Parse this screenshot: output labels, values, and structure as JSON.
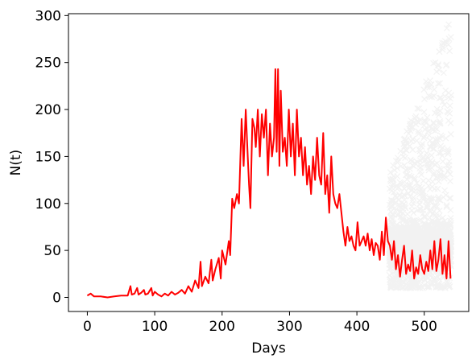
{
  "chart_data": {
    "type": "line",
    "title": "",
    "xlabel": "Days",
    "ylabel": "N(t)",
    "xlim": [
      -28,
      566
    ],
    "ylim": [
      -15,
      302
    ],
    "xticks": [
      0,
      100,
      200,
      300,
      400,
      500
    ],
    "yticks": [
      0,
      50,
      100,
      150,
      200,
      250,
      300
    ],
    "grid": false,
    "legend": "none",
    "series": [
      {
        "kind": "line",
        "color": "#ff0000",
        "x": [
          0,
          5,
          10,
          20,
          30,
          40,
          50,
          60,
          64,
          66,
          70,
          74,
          76,
          80,
          84,
          86,
          90,
          95,
          97,
          100,
          105,
          110,
          115,
          120,
          125,
          130,
          135,
          140,
          145,
          150,
          155,
          160,
          165,
          168,
          170,
          175,
          180,
          184,
          186,
          190,
          195,
          198,
          200,
          205,
          210,
          212,
          215,
          218,
          222,
          225,
          229,
          232,
          235,
          238,
          240,
          242,
          245,
          248,
          250,
          253,
          256,
          259,
          262,
          265,
          268,
          271,
          274,
          277,
          279,
          281,
          283,
          285,
          287,
          290,
          293,
          296,
          299,
          302,
          305,
          308,
          311,
          314,
          317,
          320,
          323,
          326,
          329,
          332,
          335,
          338,
          341,
          344,
          347,
          350,
          353,
          356,
          359,
          362,
          365,
          368,
          371,
          374,
          377,
          380,
          383,
          386,
          389,
          392,
          395,
          398,
          401,
          404,
          407,
          410,
          413,
          416,
          419,
          422,
          425,
          428,
          431,
          434,
          437,
          440,
          443,
          446,
          449,
          452,
          455,
          458,
          461,
          464,
          467,
          470,
          473,
          476,
          479,
          482,
          485,
          488,
          491,
          494,
          497,
          500,
          503,
          506,
          509,
          512,
          515,
          518,
          521,
          524,
          527,
          530,
          533,
          536,
          539
        ],
        "y": [
          2,
          4,
          1,
          1,
          0,
          1,
          2,
          2,
          12,
          3,
          4,
          10,
          3,
          5,
          8,
          3,
          4,
          10,
          2,
          6,
          3,
          1,
          4,
          2,
          6,
          3,
          5,
          8,
          4,
          12,
          6,
          18,
          10,
          38,
          12,
          22,
          15,
          40,
          18,
          30,
          42,
          20,
          50,
          35,
          60,
          45,
          105,
          95,
          110,
          100,
          190,
          140,
          200,
          150,
          120,
          95,
          190,
          180,
          160,
          200,
          150,
          195,
          170,
          200,
          130,
          185,
          150,
          170,
          243,
          155,
          243,
          140,
          220,
          155,
          170,
          140,
          200,
          150,
          185,
          130,
          200,
          150,
          170,
          130,
          160,
          120,
          140,
          110,
          150,
          125,
          170,
          130,
          120,
          175,
          110,
          130,
          90,
          150,
          110,
          100,
          95,
          110,
          90,
          70,
          55,
          75,
          60,
          65,
          55,
          50,
          80,
          55,
          60,
          65,
          55,
          68,
          50,
          62,
          45,
          58,
          55,
          40,
          70,
          45,
          85,
          60,
          55,
          40,
          60,
          30,
          45,
          22,
          40,
          55,
          25,
          35,
          28,
          50,
          20,
          32,
          25,
          45,
          30,
          25,
          38,
          28,
          50,
          30,
          60,
          28,
          40,
          62,
          25,
          45,
          20,
          60,
          20
        ]
      },
      {
        "kind": "scatter",
        "marker": "x",
        "color": "#000000",
        "alpha": 0.05,
        "x_range": [
          448,
          540
        ],
        "y_band": "dense 10-100, sparse up to ~290"
      }
    ]
  }
}
